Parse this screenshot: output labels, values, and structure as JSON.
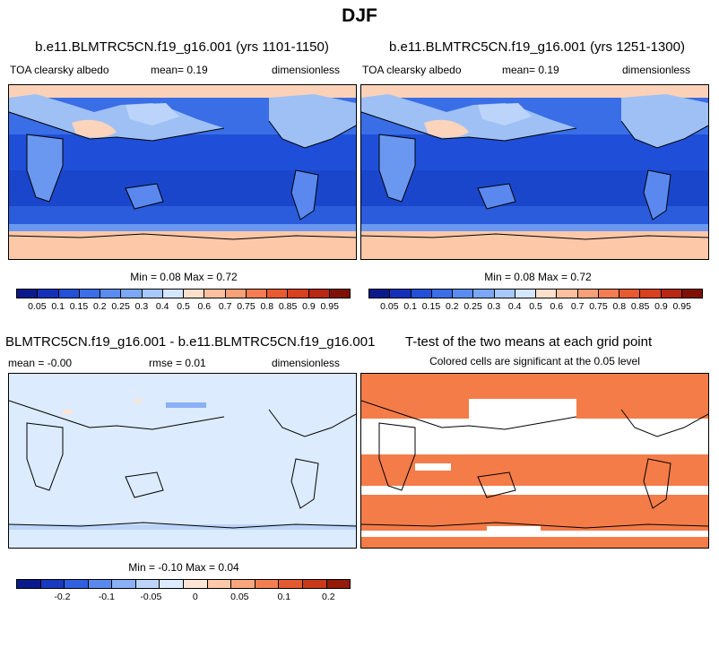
{
  "figure_title": "DJF",
  "panels": [
    {
      "title": "b.e11.BLMTRC5CN.f19_g16.001 (yrs 1101-1150)",
      "variable": "TOA clearsky albedo",
      "mean": "mean=   0.19",
      "units": "dimensionless",
      "minmax": "Min =   0.08 Max =   0.72"
    },
    {
      "title": "b.e11.BLMTRC5CN.f19_g16.001 (yrs 1251-1300)",
      "variable": "TOA clearsky albedo",
      "mean": "mean=   0.19",
      "units": "dimensionless",
      "minmax": "Min =   0.08 Max =   0.72"
    },
    {
      "title": "BLMTRC5CN.f19_g16.001 - b.e11.BLMTRC5CN.f19_g16.001",
      "mean": "mean =  -0.00",
      "rmse": "rmse =   0.01",
      "units": "dimensionless",
      "minmax": "Min =  -0.10 Max =   0.04"
    },
    {
      "title": "T-test of the two means at each grid point",
      "subtitle": "Colored cells are significant at the 0.05 level"
    }
  ],
  "colorbar_abs": {
    "labels": [
      "0.05",
      "0.1",
      "0.15",
      "0.2",
      "0.25",
      "0.3",
      "0.4",
      "0.5",
      "0.6",
      "0.7",
      "0.75",
      "0.8",
      "0.85",
      "0.9",
      "0.95"
    ],
    "colors": [
      "#0a1a8c",
      "#1530b8",
      "#2250d8",
      "#3c6ee8",
      "#5a8cf0",
      "#7aa8f5",
      "#a6c8fa",
      "#d4e6fd",
      "#fde0cc",
      "#fcc0a0",
      "#f8a078",
      "#f47c50",
      "#ea5a30",
      "#d8401e",
      "#b82812",
      "#801006"
    ]
  },
  "colorbar_diff": {
    "labels": [
      "-0.2",
      "-0.1",
      "-0.05",
      "0",
      "0.05",
      "0.1",
      "0.2"
    ],
    "colors": [
      "#0a1a8c",
      "#1a38c0",
      "#3060e0",
      "#5a88ee",
      "#8ab0f5",
      "#bcd4fa",
      "#dcebfd",
      "#fde4d4",
      "#fcc8aa",
      "#f8a67e",
      "#f27e52",
      "#e45a30",
      "#c83a1a",
      "#941a0a"
    ]
  },
  "colors": {
    "ocean_dark": "#1f4fd8",
    "ocean_mid": "#3a6ee6",
    "land_light": "#9ec0f5",
    "ice": "#fcc8a8",
    "diff_bg": "#dcebfd",
    "sig": "#f47c48"
  },
  "chart_data": [
    {
      "type": "heatmap",
      "title": "b.e11.BLMTRC5CN.f19_g16.001 (yrs 1101-1150)",
      "variable": "TOA clearsky albedo",
      "mean": 0.19,
      "min": 0.08,
      "max": 0.72,
      "units": "dimensionless",
      "levels": [
        0.05,
        0.1,
        0.15,
        0.2,
        0.25,
        0.3,
        0.4,
        0.5,
        0.6,
        0.7,
        0.75,
        0.8,
        0.85,
        0.9,
        0.95
      ]
    },
    {
      "type": "heatmap",
      "title": "b.e11.BLMTRC5CN.f19_g16.001 (yrs 1251-1300)",
      "variable": "TOA clearsky albedo",
      "mean": 0.19,
      "min": 0.08,
      "max": 0.72,
      "units": "dimensionless",
      "levels": [
        0.05,
        0.1,
        0.15,
        0.2,
        0.25,
        0.3,
        0.4,
        0.5,
        0.6,
        0.7,
        0.75,
        0.8,
        0.85,
        0.9,
        0.95
      ]
    },
    {
      "type": "heatmap",
      "title": "BLMTRC5CN.f19_g16.001 - b.e11.BLMTRC5CN.f19_g16.001",
      "mean": -0.0,
      "rmse": 0.01,
      "min": -0.1,
      "max": 0.04,
      "units": "dimensionless",
      "levels": [
        -0.2,
        -0.1,
        -0.05,
        0,
        0.05,
        0.1,
        0.2
      ]
    },
    {
      "type": "heatmap",
      "title": "T-test of the two means at each grid point",
      "subtitle": "Colored cells are significant at the 0.05 level"
    }
  ]
}
